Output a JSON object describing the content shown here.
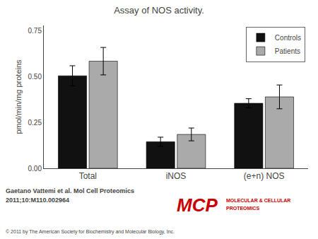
{
  "chart_data": {
    "type": "bar",
    "title": "Assay of NOS activity.",
    "ylabel": "pmol/min/mg proteins",
    "categories": [
      "Total",
      "iNOS",
      "(e+n) NOS"
    ],
    "series": [
      {
        "name": "Controls",
        "color": "#111111",
        "values": [
          0.505,
          0.145,
          0.355
        ],
        "errors": [
          0.055,
          0.025,
          0.025
        ]
      },
      {
        "name": "Patients",
        "color": "#aaaaaa",
        "values": [
          0.585,
          0.185,
          0.39
        ],
        "errors": [
          0.075,
          0.035,
          0.065
        ]
      }
    ],
    "ylim": [
      0.0,
      0.78
    ],
    "yticks": [
      {
        "value": 0,
        "label": "0.00"
      },
      0.25,
      {
        "value": 0.5,
        "label": "0.50"
      },
      0.75
    ],
    "legend": "upper right",
    "grid": false,
    "annotations": [
      "Gaetano Vattemi et al. Mol Cell Proteomics",
      "2011;10:M110.002964",
      "© 2011 by The American Society for Biochemistry and Molecular Biology, Inc.",
      "MCP",
      "MOLECULAR & CELLULAR",
      "PROTEOMICS"
    ]
  }
}
